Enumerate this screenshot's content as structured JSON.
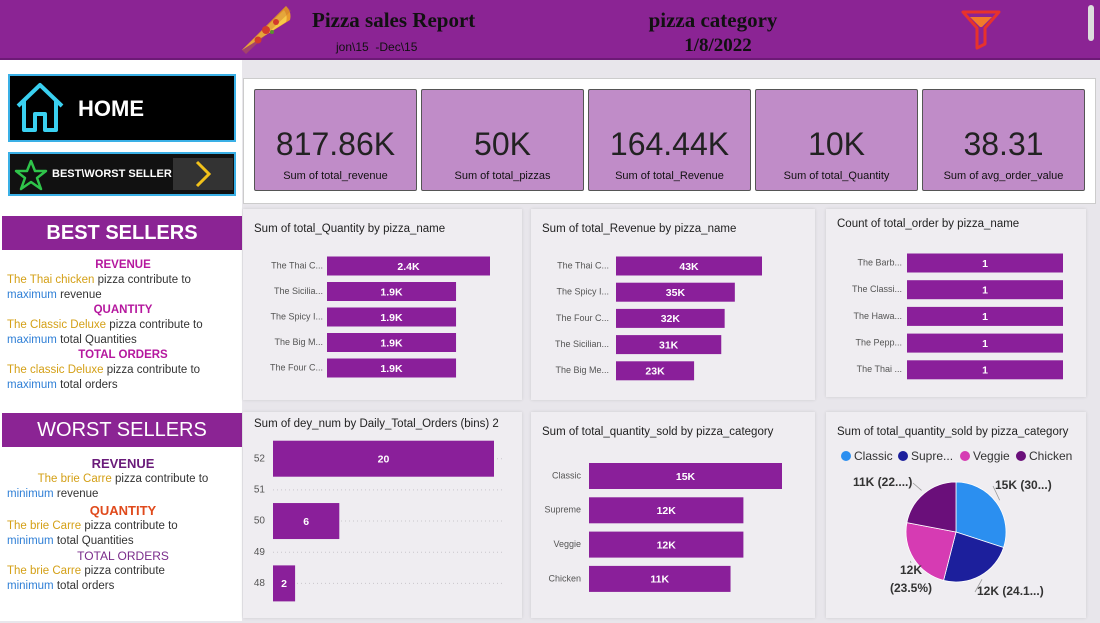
{
  "header": {
    "title": "Pizza sales Report",
    "subtitle": "jon\\15  -Dec\\15",
    "filter_label": "pizza category",
    "date": "1/8/2022"
  },
  "nav": {
    "home": "HOME",
    "best_worst": "BEST\\WORST SELLER"
  },
  "kpis": [
    {
      "value": "817.86K",
      "label": "Sum of total_revenue"
    },
    {
      "value": "50K",
      "label": "Sum of total_pizzas"
    },
    {
      "value": "164.44K",
      "label": "Sum of total_Revenue"
    },
    {
      "value": "10K",
      "label": "Sum of total_Quantity"
    },
    {
      "value": "38.31",
      "label": "Sum of avg_order_value"
    }
  ],
  "best_sellers": {
    "title": "BEST SELLERS",
    "items": [
      {
        "heading": "REVENUE",
        "subject": "The Thai chicken",
        "rest": "pizza contribute to",
        "qualifier": "maximum",
        "measure": "revenue"
      },
      {
        "heading": "QUANTITY",
        "subject": "The Classic Deluxe",
        "rest": "pizza contribute to",
        "qualifier": "maximum",
        "measure": "total Quantities"
      },
      {
        "heading": "TOTAL ORDERS",
        "subject": "The classic Deluxe",
        "rest": "pizza contribute to",
        "qualifier": "maximum",
        "measure": "total orders"
      }
    ]
  },
  "worst_sellers": {
    "title": "WORST SELLERS",
    "items": [
      {
        "heading": "REVENUE",
        "subject": "The brie Carre",
        "rest": "pizza contribute to",
        "qualifier": "minimum",
        "measure": "revenue"
      },
      {
        "heading": "QUANTITY",
        "subject": "The brie Carre",
        "rest": "pizza contribute to",
        "qualifier": "minimum",
        "measure": "total Quantities"
      },
      {
        "heading": "TOTAL ORDERS",
        "subject": "The brie Carre",
        "rest": "pizza contribute",
        "qualifier": "minimum",
        "measure": "total orders"
      }
    ]
  },
  "chart_data": [
    {
      "type": "bar",
      "orientation": "horizontal",
      "title": "Sum of total_Quantity by pizza_name",
      "color": "#8a1f9a",
      "categories": [
        "The Thai C...",
        "The Sicilia...",
        "The Spicy I...",
        "The Big M...",
        "The Four C..."
      ],
      "values": [
        2400,
        1900,
        1900,
        1900,
        1900
      ],
      "value_labels": [
        "2.4K",
        "1.9K",
        "1.9K",
        "1.9K",
        "1.9K"
      ]
    },
    {
      "type": "bar",
      "orientation": "horizontal",
      "title": "Sum of total_Revenue by pizza_name",
      "color": "#8a1f9a",
      "categories": [
        "The Thai C...",
        "The Spicy I...",
        "The Four C...",
        "The Sicilian...",
        "The Big Me..."
      ],
      "values": [
        43000,
        35000,
        32000,
        31000,
        23000
      ],
      "value_labels": [
        "43K",
        "35K",
        "32K",
        "31K",
        "23K"
      ]
    },
    {
      "type": "bar",
      "orientation": "horizontal",
      "title": "Count of total_order by pizza_name",
      "color": "#8a1f9a",
      "categories": [
        "The Barb...",
        "The Classi...",
        "The Hawa...",
        "The Pepp...",
        "The Thai ..."
      ],
      "values": [
        1,
        1,
        1,
        1,
        1
      ]
    },
    {
      "type": "bar",
      "orientation": "horizontal",
      "title": "Sum of dey_num by Daily_Total_Orders (bins) 2",
      "color": "#8a1f9a",
      "y": [
        52,
        50,
        48
      ],
      "values": [
        20,
        6,
        2
      ],
      "ylim": [
        47.05,
        52.6
      ],
      "yticks": [
        52,
        51,
        50,
        49,
        48
      ],
      "grid": true
    },
    {
      "type": "bar",
      "orientation": "horizontal",
      "title": "Sum of total_quantity_sold by pizza_category",
      "color": "#8a1f9a",
      "categories": [
        "Classic",
        "Supreme",
        "Veggie",
        "Chicken"
      ],
      "values": [
        15000,
        12000,
        12000,
        11000
      ],
      "value_labels": [
        "15K",
        "12K",
        "12K",
        "11K"
      ]
    },
    {
      "type": "pie",
      "title": "Sum of total_quantity_sold by pizza_category",
      "categories": [
        "Classic",
        "Supre...",
        "Veggie",
        "Chicken"
      ],
      "colors": [
        "#2b8ff0",
        "#1c1f9c",
        "#d63bb3",
        "#6a0f7a"
      ],
      "values": [
        15000,
        12000,
        12000,
        11000
      ],
      "value_labels": [
        "15K (30...)",
        "12K (24.1...)",
        "12K (23.5%)",
        "11K (22....)"
      ]
    }
  ]
}
